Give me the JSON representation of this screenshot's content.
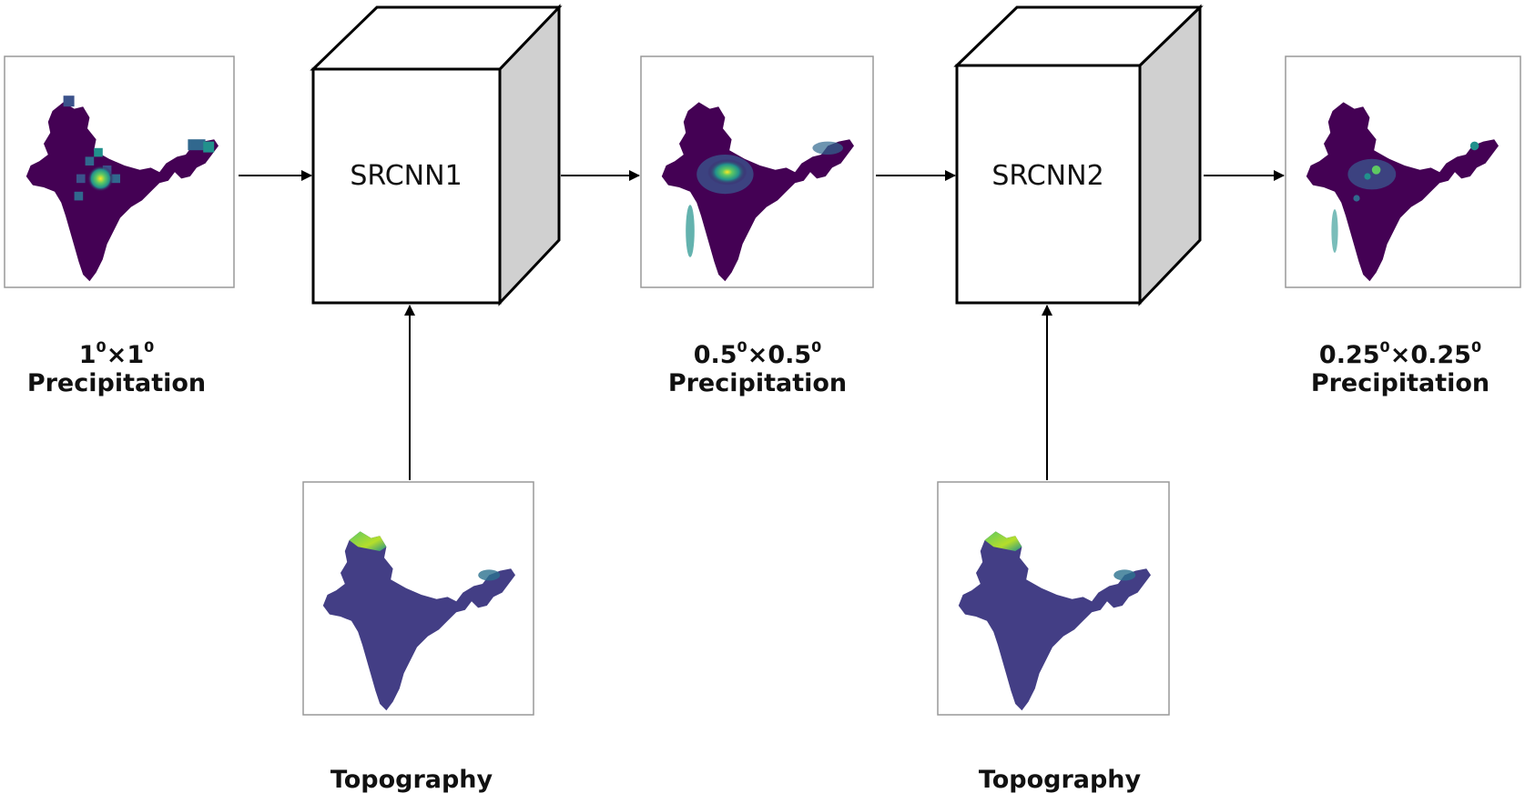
{
  "blocks": {
    "srcnn1": "SRCNN1",
    "srcnn2": "SRCNN2"
  },
  "panels": {
    "input": {
      "res": "1",
      "sup": "0",
      "x": "×",
      "res2": "1",
      "sup2": "0",
      "label": "Precipitation"
    },
    "mid": {
      "res": "0.5",
      "sup": "0",
      "x": "×",
      "res2": "0.5",
      "sup2": "0",
      "label": "Precipitation"
    },
    "output": {
      "res": "0.25",
      "sup": "0",
      "x": "×",
      "res2": "0.25",
      "sup2": "0",
      "label": "Precipitation"
    },
    "topo1": {
      "label": "Topography"
    },
    "topo2": {
      "label": "Topography"
    }
  },
  "colors": {
    "background_map": "#440154",
    "mid": "#3b528b",
    "teal": "#21918c",
    "green": "#5ec962",
    "yellow": "#fde725",
    "cube_side": "#d0d0d0"
  }
}
